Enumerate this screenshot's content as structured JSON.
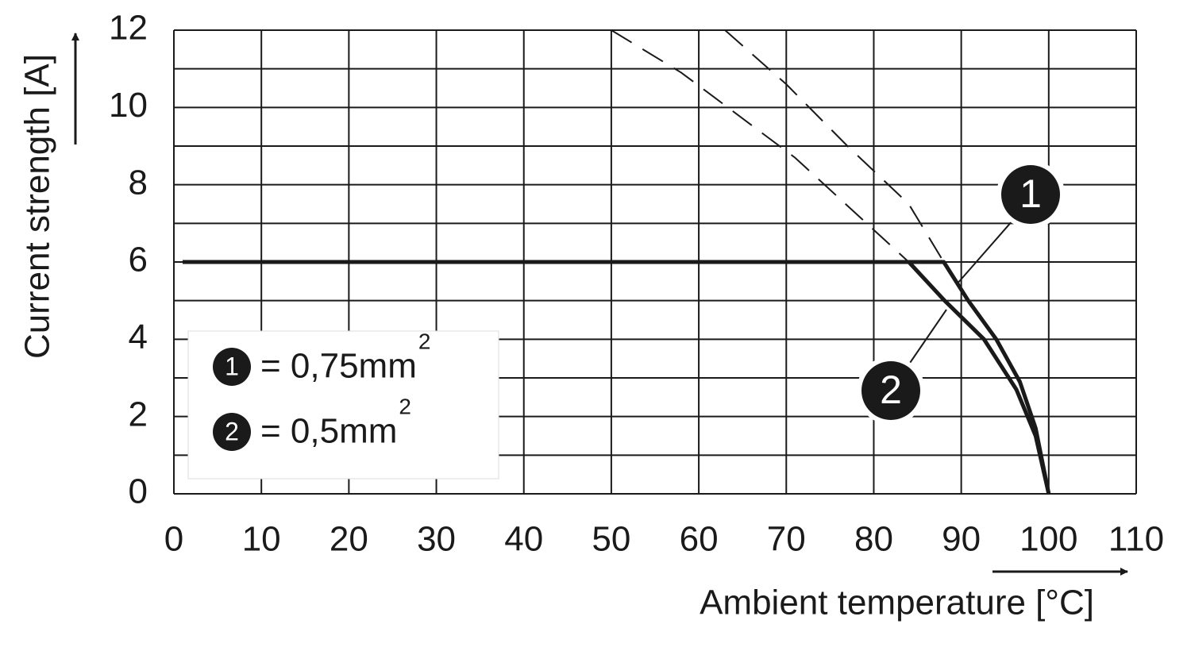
{
  "chart_data": {
    "type": "line",
    "y_label": "Current strength [A]",
    "x_label": "Ambient temperature [°C]",
    "xlim": [
      0,
      110
    ],
    "xticks": [
      0,
      10,
      20,
      30,
      40,
      50,
      60,
      70,
      80,
      90,
      100,
      110
    ],
    "ylim": [
      0,
      12
    ],
    "yticks": [
      0,
      2,
      4,
      6,
      8,
      10,
      12
    ],
    "minor_yticks": [
      1,
      3,
      5,
      7,
      9,
      11
    ],
    "grid": true,
    "series": [
      {
        "name": "1",
        "legend": "= 0,75mm",
        "legend_sup": "2",
        "color": "#1a1a1a",
        "x": [
          1,
          88,
          90.8,
          94,
          96.7,
          98.5,
          100
        ],
        "values": [
          6,
          6,
          5,
          4,
          2.9,
          1.7,
          0
        ],
        "dashed_x": [
          63,
          70,
          77,
          84,
          88
        ],
        "dashed_values": [
          12,
          10.6,
          9,
          7.5,
          6
        ]
      },
      {
        "name": "2",
        "legend": "= 0,5mm",
        "legend_sup": "2",
        "color": "#1a1a1a",
        "x": [
          84,
          88.1,
          92.6,
          96.3,
          98.5,
          100
        ],
        "values": [
          6,
          5,
          4,
          2.7,
          1.5,
          0
        ],
        "dashed_x": [
          50,
          58,
          71,
          84
        ],
        "dashed_values": [
          12,
          10.9,
          8.7,
          6
        ]
      }
    ]
  }
}
